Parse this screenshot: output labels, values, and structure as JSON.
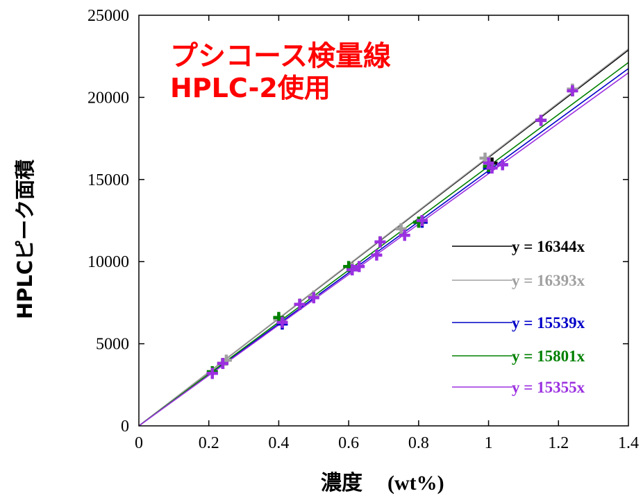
{
  "chart_data": {
    "type": "scatter",
    "title": "プシコース検量線",
    "subtitle": "HPLC-2使用",
    "xlabel_jp": "濃度",
    "xlabel_en": "(wt%)",
    "ylabel": "HPLCピーク面積",
    "xlim": [
      0,
      1.4
    ],
    "ylim": [
      0,
      25000
    ],
    "x_ticks": [
      "0",
      "0.2",
      "0.4",
      "0.6",
      "0.8",
      "1",
      "1.2",
      "1.4"
    ],
    "y_ticks": [
      "0",
      "5000",
      "10000",
      "15000",
      "20000",
      "25000"
    ],
    "grid": false,
    "legend_position": "right",
    "series": [
      {
        "color": "#000000",
        "fit_label": "y = 16344x",
        "slope": 16344,
        "points": [
          [
            0.24,
            3800
          ],
          [
            0.41,
            6300
          ],
          [
            0.46,
            7400
          ],
          [
            0.61,
            9600
          ],
          [
            0.69,
            11200
          ],
          [
            0.81,
            12500
          ],
          [
            1.01,
            16000
          ],
          [
            1.15,
            18600
          ],
          [
            1.24,
            20400
          ]
        ]
      },
      {
        "color": "#a0a0a0",
        "fit_label": "y = 16393x",
        "slope": 16393,
        "points": [
          [
            0.25,
            4000
          ],
          [
            0.4,
            6500
          ],
          [
            0.5,
            7900
          ],
          [
            0.61,
            9600
          ],
          [
            0.75,
            12000
          ],
          [
            0.81,
            12500
          ],
          [
            0.99,
            16300
          ],
          [
            1.24,
            20500
          ]
        ]
      },
      {
        "color": "#0000c8",
        "fit_label": "y = 15539x",
        "slope": 15539,
        "points": [
          [
            0.21,
            3200
          ],
          [
            0.41,
            6200
          ],
          [
            0.61,
            9500
          ],
          [
            0.81,
            12400
          ],
          [
            1.0,
            15700
          ],
          [
            1.04,
            15900
          ]
        ]
      },
      {
        "color": "#008000",
        "fit_label": "y = 15801x",
        "slope": 15801,
        "points": [
          [
            0.21,
            3300
          ],
          [
            0.4,
            6600
          ],
          [
            0.6,
            9700
          ],
          [
            0.8,
            12400
          ],
          [
            1.0,
            15800
          ]
        ]
      },
      {
        "color": "#9b30e0",
        "fit_label": "y = 15355x",
        "slope": 15355,
        "points": [
          [
            0.21,
            3200
          ],
          [
            0.24,
            3800
          ],
          [
            0.41,
            6300
          ],
          [
            0.46,
            7400
          ],
          [
            0.5,
            7800
          ],
          [
            0.61,
            9500
          ],
          [
            0.63,
            9700
          ],
          [
            0.68,
            10400
          ],
          [
            0.69,
            11200
          ],
          [
            0.76,
            11600
          ],
          [
            0.81,
            12500
          ],
          [
            1.0,
            16000
          ],
          [
            1.01,
            15700
          ],
          [
            1.04,
            15900
          ],
          [
            1.15,
            18600
          ],
          [
            1.24,
            20400
          ]
        ]
      }
    ]
  }
}
